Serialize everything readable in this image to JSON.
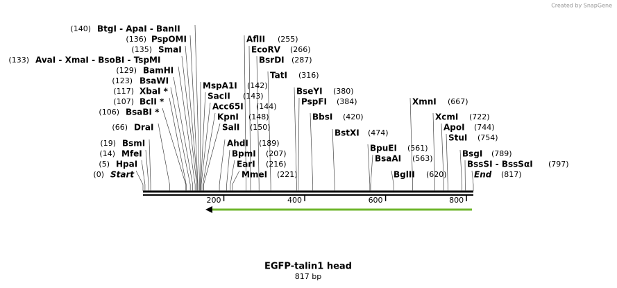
{
  "header": {
    "credit": "Created by SnapGene"
  },
  "sequence": {
    "title": "EGFP-talin1 head",
    "length": {
      "value": 817,
      "label": "817 bp"
    }
  },
  "ruler": {
    "ticks": [
      200,
      400,
      600,
      800
    ]
  },
  "sites": [
    {
      "name": "BtgI  -  ApaI  -  BanII",
      "site": {
        "value": 140,
        "label": "(140)"
      }
    },
    {
      "name": "PspOMI",
      "site": {
        "value": 136,
        "label": "(136)"
      }
    },
    {
      "name": "SmaI",
      "site": {
        "value": 135,
        "label": "(135)"
      }
    },
    {
      "name": "AvaI  -  XmaI  -  BsoBI  -  TspMI",
      "site": {
        "value": 133,
        "label": "(133)"
      }
    },
    {
      "name": "BamHI",
      "site": {
        "value": 129,
        "label": "(129)"
      }
    },
    {
      "name": "BsaWI",
      "site": {
        "value": 123,
        "label": "(123)"
      }
    },
    {
      "name": "XbaI *",
      "site": {
        "value": 117,
        "label": "(117)"
      }
    },
    {
      "name": "BclI *",
      "site": {
        "value": 107,
        "label": "(107)"
      }
    },
    {
      "name": "BsaBI *",
      "site": {
        "value": 106,
        "label": "(106)"
      }
    },
    {
      "name": "DraI",
      "site": {
        "value": 66,
        "label": "(66)"
      }
    },
    {
      "name": "BsmI",
      "site": {
        "value": 19,
        "label": "(19)"
      }
    },
    {
      "name": "MfeI",
      "site": {
        "value": 14,
        "label": "(14)"
      }
    },
    {
      "name": "HpaI",
      "site": {
        "value": 5,
        "label": "(5)"
      }
    },
    {
      "name": "Start",
      "site": {
        "value": 0,
        "label": "(0)"
      }
    },
    {
      "name": "AflII",
      "site": {
        "value": 255,
        "label": "(255)"
      }
    },
    {
      "name": "EcoRV",
      "site": {
        "value": 266,
        "label": "(266)"
      }
    },
    {
      "name": "BsrDI",
      "site": {
        "value": 287,
        "label": "(287)"
      }
    },
    {
      "name": "TatI",
      "site": {
        "value": 316,
        "label": "(316)"
      }
    },
    {
      "name": "MspA1I",
      "site": {
        "value": 142,
        "label": "(142)"
      }
    },
    {
      "name": "SacII",
      "site": {
        "value": 143,
        "label": "(143)"
      }
    },
    {
      "name": "Acc65I",
      "site": {
        "value": 144,
        "label": "(144)"
      }
    },
    {
      "name": "KpnI",
      "site": {
        "value": 148,
        "label": "(148)"
      }
    },
    {
      "name": "SalI",
      "site": {
        "value": 150,
        "label": "(150)"
      }
    },
    {
      "name": "AhdI",
      "site": {
        "value": 189,
        "label": "(189)"
      }
    },
    {
      "name": "BpmI",
      "site": {
        "value": 207,
        "label": "(207)"
      }
    },
    {
      "name": "EarI",
      "site": {
        "value": 216,
        "label": "(216)"
      }
    },
    {
      "name": "MmeI",
      "site": {
        "value": 221,
        "label": "(221)"
      }
    },
    {
      "name": "BseYI",
      "site": {
        "value": 380,
        "label": "(380)"
      }
    },
    {
      "name": "PspFI",
      "site": {
        "value": 384,
        "label": "(384)"
      }
    },
    {
      "name": "BbsI",
      "site": {
        "value": 420,
        "label": "(420)"
      }
    },
    {
      "name": "BstXI",
      "site": {
        "value": 474,
        "label": "(474)"
      }
    },
    {
      "name": "BpuEI",
      "site": {
        "value": 561,
        "label": "(561)"
      }
    },
    {
      "name": "BsaAI",
      "site": {
        "value": 563,
        "label": "(563)"
      }
    },
    {
      "name": "BglII",
      "site": {
        "value": 620,
        "label": "(620)"
      }
    },
    {
      "name": "XmnI",
      "site": {
        "value": 667,
        "label": "(667)"
      }
    },
    {
      "name": "XcmI",
      "site": {
        "value": 722,
        "label": "(722)"
      }
    },
    {
      "name": "ApoI",
      "site": {
        "value": 744,
        "label": "(744)"
      }
    },
    {
      "name": "StuI",
      "site": {
        "value": 754,
        "label": "(754)"
      }
    },
    {
      "name": "BsgI",
      "site": {
        "value": 789,
        "label": "(789)"
      }
    },
    {
      "name": "BssSI  -  BssSαI",
      "site": {
        "value": 797,
        "label": "(797)"
      }
    },
    {
      "name": "End",
      "site": {
        "value": 817,
        "label": "(817)"
      }
    }
  ]
}
